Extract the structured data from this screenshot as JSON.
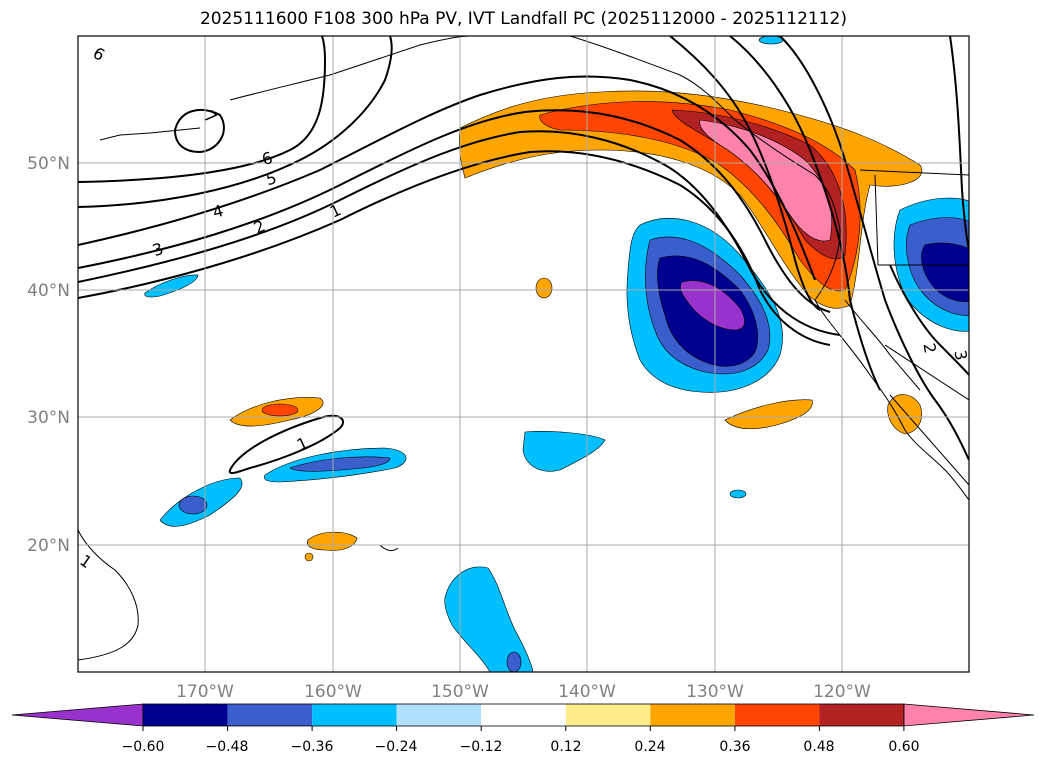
{
  "title": "2025111600 F108 300 hPa PV, IVT Landfall PC (2025112000 - 2025112112)",
  "colors": {
    "shade_levels": [
      "#9932cc",
      "#000090",
      "#3a5fcd",
      "#00bfff",
      "#b0e2ff",
      "#ffffff",
      "#ffec8b",
      "#ffa500",
      "#ff4500",
      "#b22222",
      "#ff82ab"
    ],
    "contour": "#000000",
    "coast": "#000000",
    "grid": "#aaaaaa",
    "lat_label": "#808080",
    "lon_label": "#808080"
  },
  "map": {
    "projection": "cylindrical",
    "lon_range": [
      -180,
      -110
    ],
    "lat_range": [
      10,
      60
    ],
    "lat_lines": [
      20,
      30,
      40,
      50
    ],
    "lon_lines": [
      -170,
      -160,
      -150,
      -140,
      -130,
      -120
    ],
    "lat_labels": [
      "20°N",
      "30°N",
      "40°N",
      "50°N"
    ],
    "lon_labels": [
      "170°W",
      "160°W",
      "150°W",
      "140°W",
      "130°W",
      "120°W"
    ],
    "pv_contour_labels": [
      "1",
      "2",
      "3",
      "4",
      "5",
      "6",
      "7",
      "6",
      "1",
      "1",
      "2",
      "3"
    ]
  },
  "colorbar": {
    "ticks": [
      "−0.60",
      "−0.48",
      "−0.36",
      "−0.24",
      "−0.12",
      "0.12",
      "0.24",
      "0.36",
      "0.48",
      "0.60"
    ],
    "extend": "both"
  }
}
